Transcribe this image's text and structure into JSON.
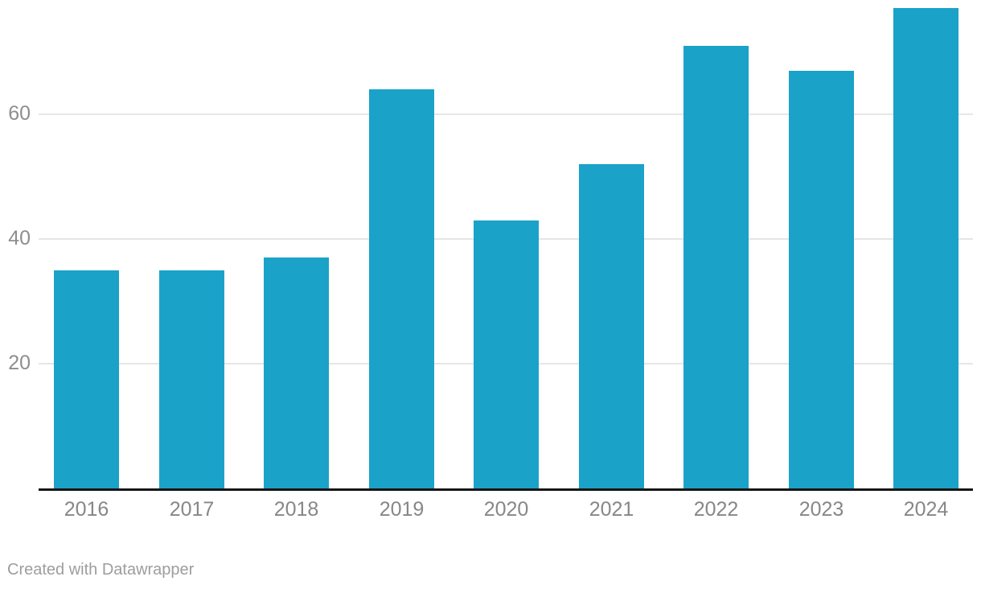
{
  "footer": {
    "credit": "Created with Datawrapper"
  },
  "chart_data": {
    "type": "bar",
    "categories": [
      "2016",
      "2017",
      "2018",
      "2019",
      "2020",
      "2021",
      "2022",
      "2023",
      "2024"
    ],
    "values": [
      35,
      35,
      37,
      64,
      43,
      52,
      71,
      67,
      77
    ],
    "title": "",
    "xlabel": "",
    "ylabel": "",
    "ylim": [
      0,
      78
    ],
    "yticks": [
      20,
      40,
      60
    ],
    "grid": "horizontal-on",
    "legend": "none",
    "bar_color": "#1aa2c9",
    "gridline_color": "#e6e6e6",
    "axis_line_color": "#161616",
    "tick_label_color": "#8e8e8e"
  }
}
